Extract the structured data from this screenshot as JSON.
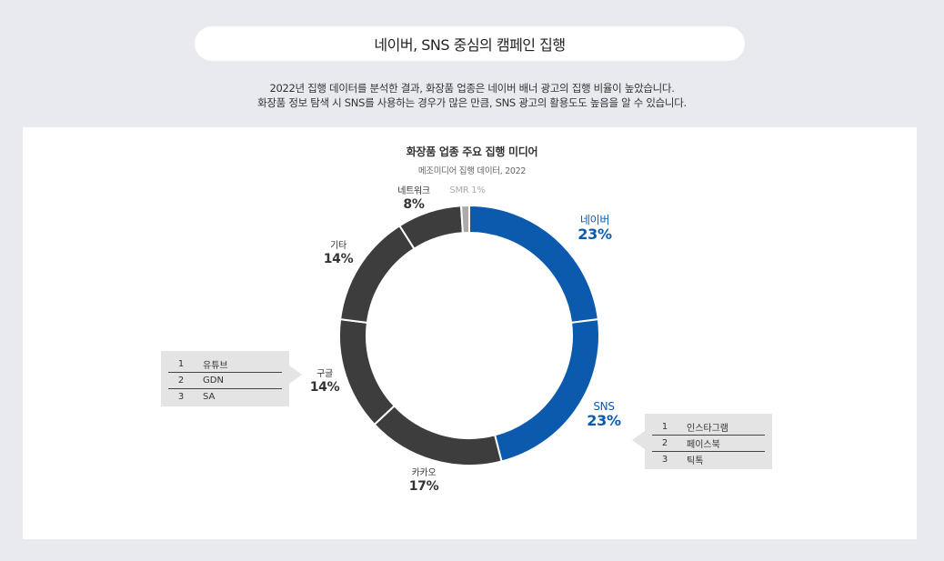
{
  "header": {
    "title": "네이버, SNS 중심의 캠페인 집행",
    "description_line1": "2022년 집행 데이터를 분석한 결과, 화장품 업종은 네이버 배너 광고의 집행 비율이 높았습니다.",
    "description_line2": "화장품 정보 탐색 시 SNS를 사용하는 경우가 많은 만큼, SNS 광고의 활용도도 높음을 알 수 있습니다."
  },
  "chart_data": {
    "type": "pie",
    "title": "화장품 업종 주요 집행 미디어",
    "subtitle": "메조미디어 집행 데이터, 2022",
    "categories": [
      "네이버",
      "SNS",
      "카카오",
      "구글",
      "기타",
      "네트워크",
      "SMR"
    ],
    "values": [
      23,
      23,
      17,
      14,
      14,
      8,
      1
    ],
    "labels": [
      "23%",
      "23%",
      "17%",
      "14%",
      "14%",
      "8%",
      "SMR 1%"
    ],
    "colors": [
      "#0b5aad",
      "#0b5aad",
      "#3d3d3d",
      "#3d3d3d",
      "#3d3d3d",
      "#3d3d3d",
      "#aaaaaa"
    ]
  },
  "detail_boxes": {
    "google": [
      {
        "rank": "1",
        "name": "유튜브"
      },
      {
        "rank": "2",
        "name": "GDN"
      },
      {
        "rank": "3",
        "name": "SA"
      }
    ],
    "sns": [
      {
        "rank": "1",
        "name": "인스타그램"
      },
      {
        "rank": "2",
        "name": "페이스북"
      },
      {
        "rank": "3",
        "name": "틱톡"
      }
    ]
  }
}
